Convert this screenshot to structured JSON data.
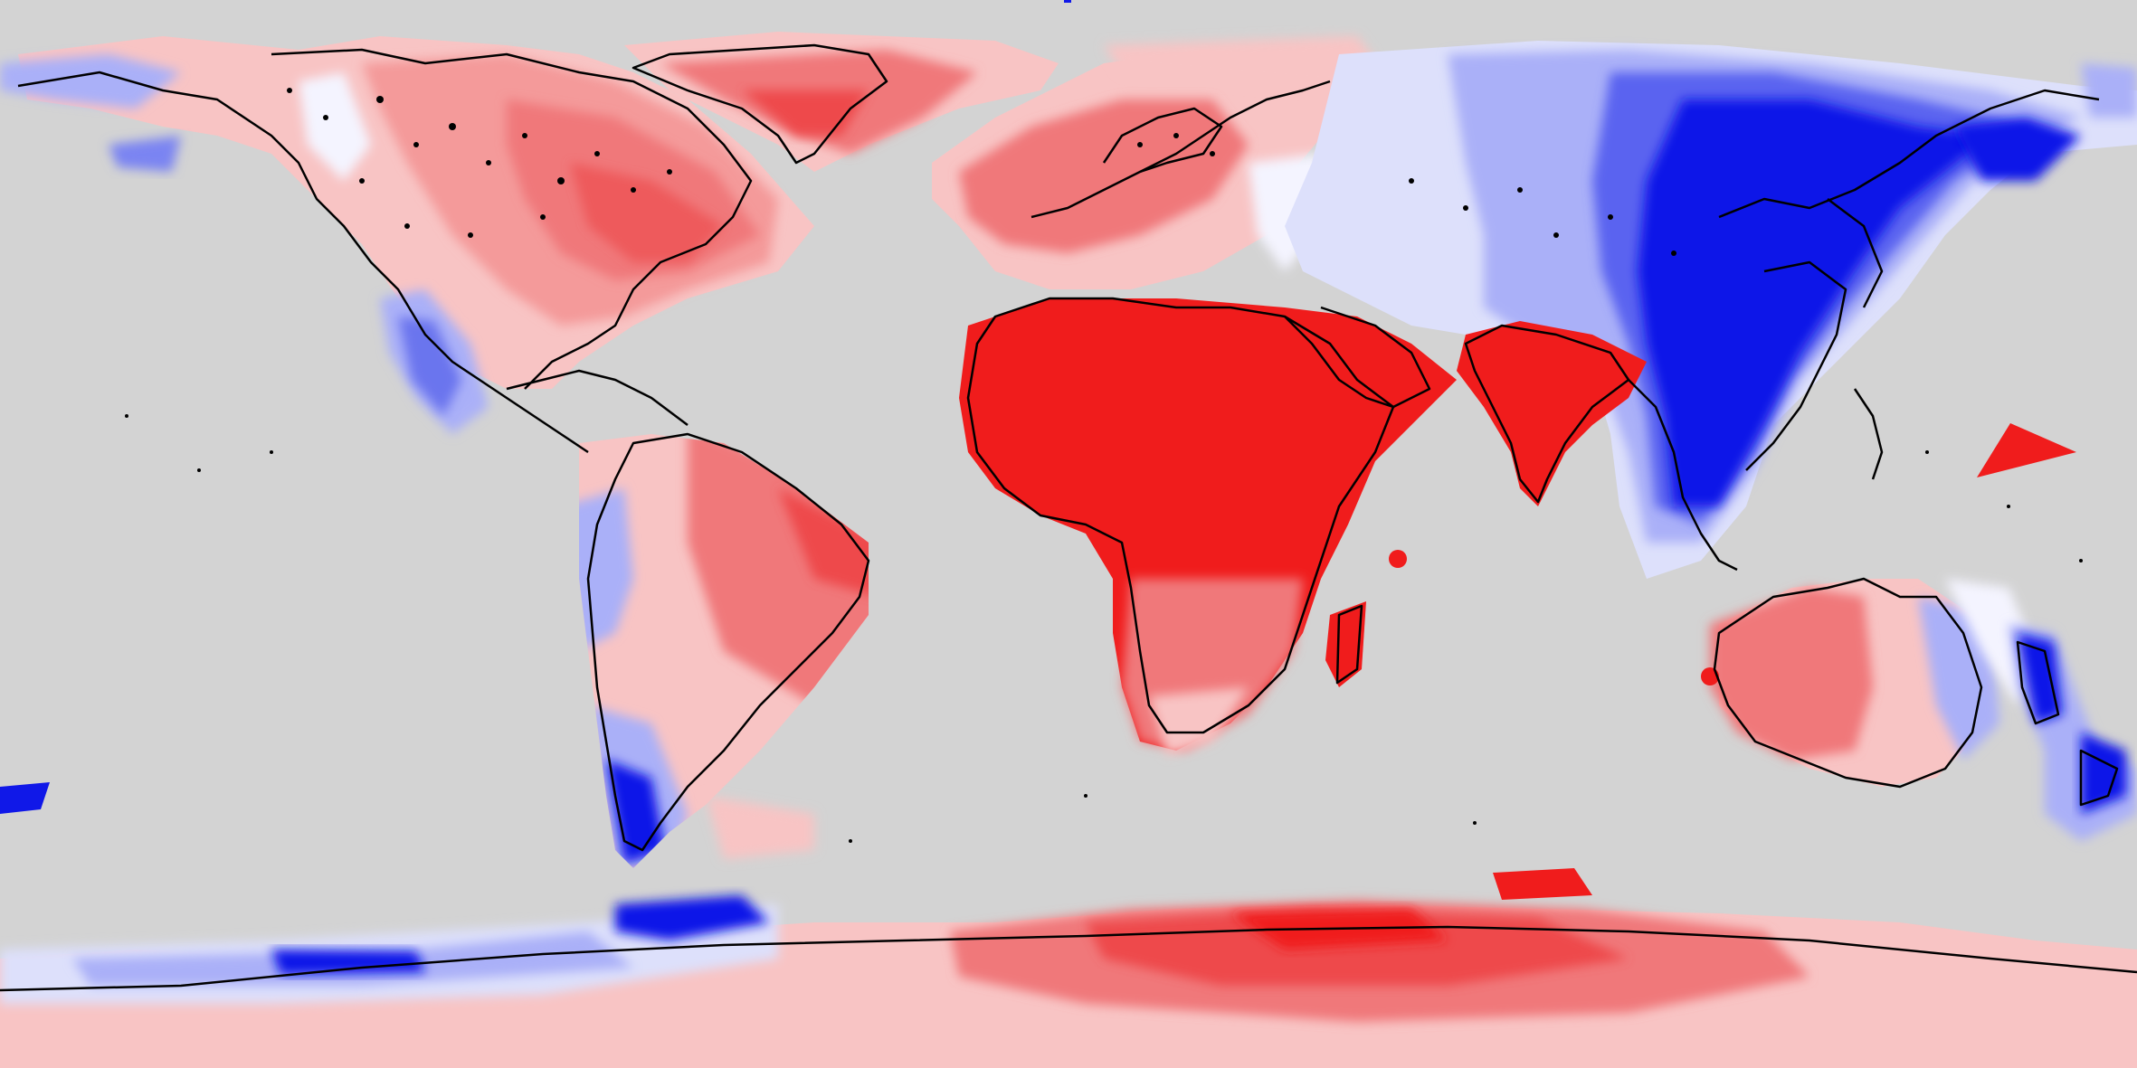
{
  "map": {
    "projection": "equirectangular",
    "background_color": "#d3d3d3",
    "coastline_color": "#000000",
    "palette": {
      "strong_negative": "#0a10e6",
      "negative": "#5a64f0",
      "weak_negative": "#aab0f8",
      "neutral": "#f4f4ff",
      "weak_positive": "#f8c4c4",
      "positive": "#f0787a",
      "strong_positive": "#f01c1c"
    },
    "regions": [
      {
        "name": "north-america",
        "pattern": "red-interior-blue-west-coast"
      },
      {
        "name": "greenland",
        "pattern": "red"
      },
      {
        "name": "europe",
        "pattern": "red"
      },
      {
        "name": "siberia",
        "pattern": "blue-gradient"
      },
      {
        "name": "east-asia",
        "pattern": "strong-blue"
      },
      {
        "name": "south-asia",
        "pattern": "strong-red"
      },
      {
        "name": "africa-middle-east",
        "pattern": "strong-red"
      },
      {
        "name": "south-america",
        "pattern": "red-east-blue-southwest"
      },
      {
        "name": "australia",
        "pattern": "red-west-blue-east"
      },
      {
        "name": "new-zealand",
        "pattern": "blue"
      },
      {
        "name": "antarctica",
        "pattern": "red-east-blue-west"
      }
    ]
  }
}
